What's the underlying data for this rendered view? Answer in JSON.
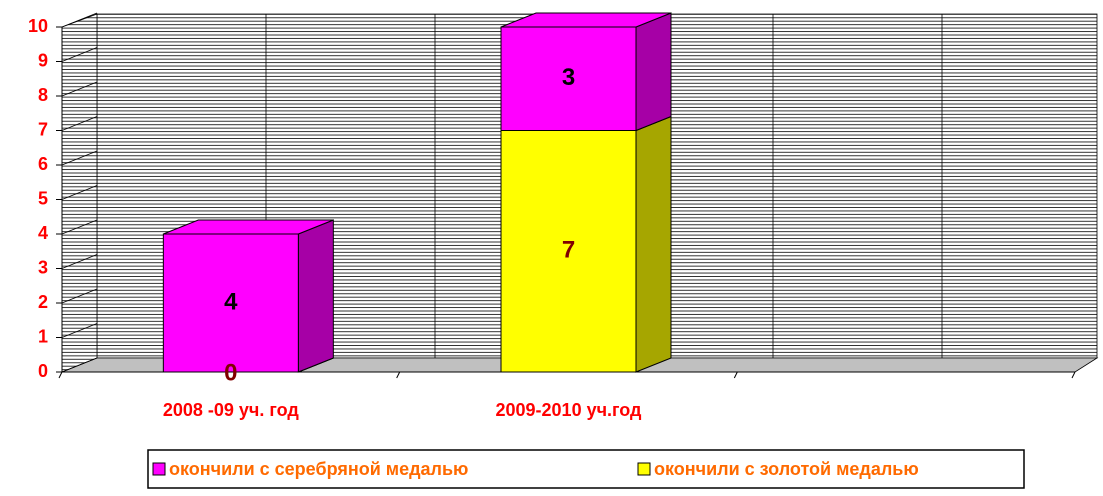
{
  "chart_data": {
    "type": "bar",
    "stacked": true,
    "categories": [
      "2008 -09 уч. год",
      "2009-2010 уч.год",
      null
    ],
    "series": [
      {
        "name": "окончили с золотой медалью",
        "color": "#ffff00",
        "label_color": "#800000",
        "values": [
          0,
          7,
          null
        ]
      },
      {
        "name": "окончили с серебряной медалью",
        "color": "#ff00ff",
        "label_color": "#000000",
        "values": [
          4,
          3,
          null
        ]
      }
    ],
    "ylim": [
      0,
      10
    ],
    "yticks": [
      0,
      1,
      2,
      3,
      4,
      5,
      6,
      7,
      8,
      9,
      10
    ],
    "grid": true
  }
}
